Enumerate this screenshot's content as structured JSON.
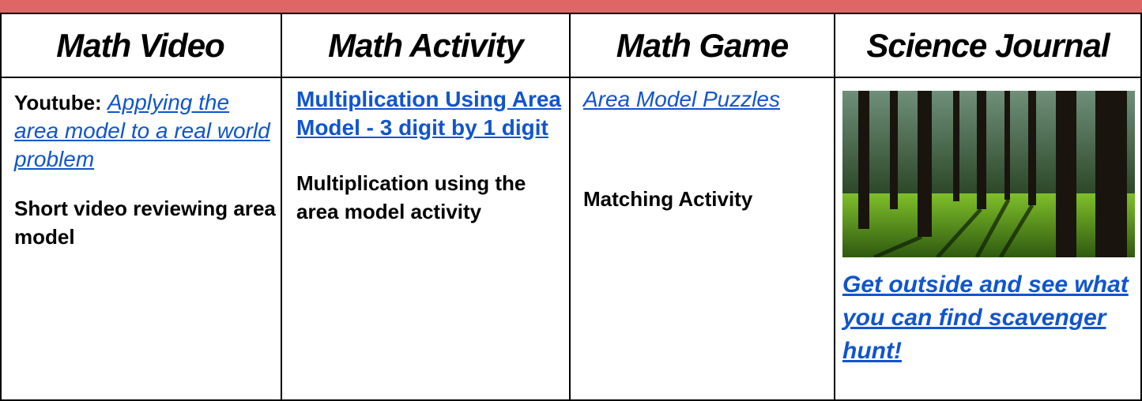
{
  "table": {
    "headers": [
      "Math Video",
      "Math Activity",
      "Math Game",
      "Science Journal"
    ],
    "cells": [
      {
        "prefix": "Youtube:",
        "link": "Applying the area model to a real world problem",
        "description": "Short video reviewing area model"
      },
      {
        "link": "Multiplication Using Area Model - 3 digit by 1 digit",
        "description": "Multiplication using the area model activity"
      },
      {
        "link": "Area Model Puzzles",
        "description": "Matching Activity"
      },
      {
        "link": "Get outside and see what you can find scavenger hunt!"
      }
    ]
  }
}
